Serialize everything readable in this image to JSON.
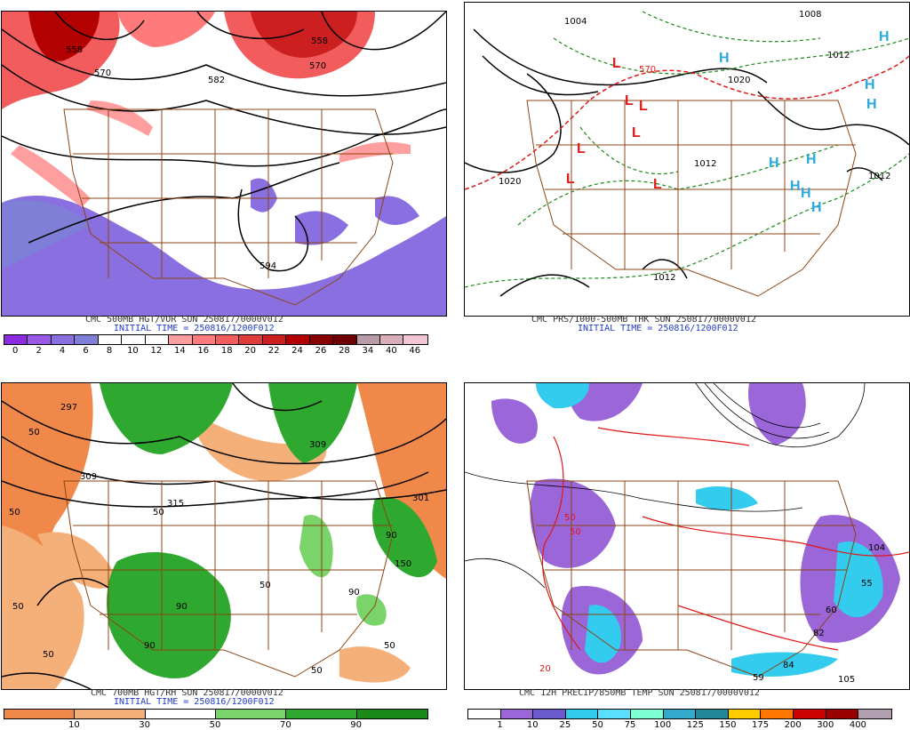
{
  "panels": {
    "p1": {
      "title": "CMC 500MB HGT/VOR SUN 250817/0000V012",
      "init": "INITIAL TIME = 250816/1200F012",
      "contours": [
        "558",
        "570",
        "582",
        "558",
        "570",
        "594"
      ],
      "colorbar": {
        "labels": [
          "0",
          "2",
          "4",
          "6",
          "8",
          "10",
          "12",
          "14",
          "16",
          "18",
          "20",
          "22",
          "24",
          "26",
          "28",
          "34",
          "40",
          "46"
        ],
        "colors": [
          "#8a2be2",
          "#9a5ae6",
          "#8a6fe0",
          "#7f7fd8",
          "#ffffff",
          "#ffffff",
          "#ffffff",
          "#ff9e9e",
          "#ff7a7a",
          "#f25c5c",
          "#e03b3b",
          "#cc1f1f",
          "#b30000",
          "#8a0000",
          "#6e0000",
          "#b89aa8",
          "#d9aeb9",
          "#f2c6d4"
        ]
      }
    },
    "p2": {
      "title": "CMC PRS/1000-500MB THK SUN 250817/0000V012",
      "init": "INITIAL TIME = 250816/1200F012",
      "contours": [
        "1004",
        "1008",
        "1020",
        "1012",
        "1020",
        "1012",
        "1012",
        "1012"
      ],
      "thickness_labels": [
        "570"
      ],
      "markers_L": [
        "L",
        "L",
        "L",
        "L",
        "L",
        "L",
        "L"
      ],
      "markers_H": [
        "H",
        "H",
        "H",
        "H",
        "H",
        "H",
        "H",
        "H",
        "H"
      ],
      "colors": {
        "low": "#e01818",
        "high": "#2aa8e0",
        "thk_warm": "#e01818",
        "thk_cold": "#1a8a1a"
      }
    },
    "p3": {
      "title": "CMC 700MB HGT/RH SUN 250817/0000V012",
      "init": "INITIAL TIME = 250816/1200F012",
      "contours": [
        "297",
        "309",
        "315",
        "309",
        "301"
      ],
      "rh_labels": [
        "50",
        "50",
        "50",
        "90",
        "150",
        "90",
        "90",
        "50",
        "50",
        "50",
        "50",
        "90",
        "50"
      ],
      "colorbar": {
        "labels": [
          "10",
          "30",
          "50",
          "70",
          "90"
        ],
        "colors": [
          "#f0884a",
          "#f5b07a",
          "#ffffff",
          "#7ad46a",
          "#2ea82e",
          "#1b8a1b"
        ]
      }
    },
    "p4": {
      "title": "CMC 12H PRECIP/850MB TEMP SUN 250817/0000V012",
      "init": "",
      "temp_labels": [
        "50",
        "20",
        "104",
        "55",
        "60",
        "82",
        "84",
        "59",
        "105",
        "50"
      ],
      "colorbar": {
        "labels": [
          "1",
          "10",
          "25",
          "50",
          "75",
          "100",
          "125",
          "150",
          "175",
          "200",
          "300",
          "400"
        ],
        "colors": [
          "#ffffff",
          "#9a66d8",
          "#6a5acd",
          "#33ccee",
          "#5ae0ff",
          "#7fffd4",
          "#33aacc",
          "#228899",
          "#ffcc00",
          "#ff7700",
          "#cc0000",
          "#990000",
          "#b0a0b0"
        ]
      }
    }
  }
}
